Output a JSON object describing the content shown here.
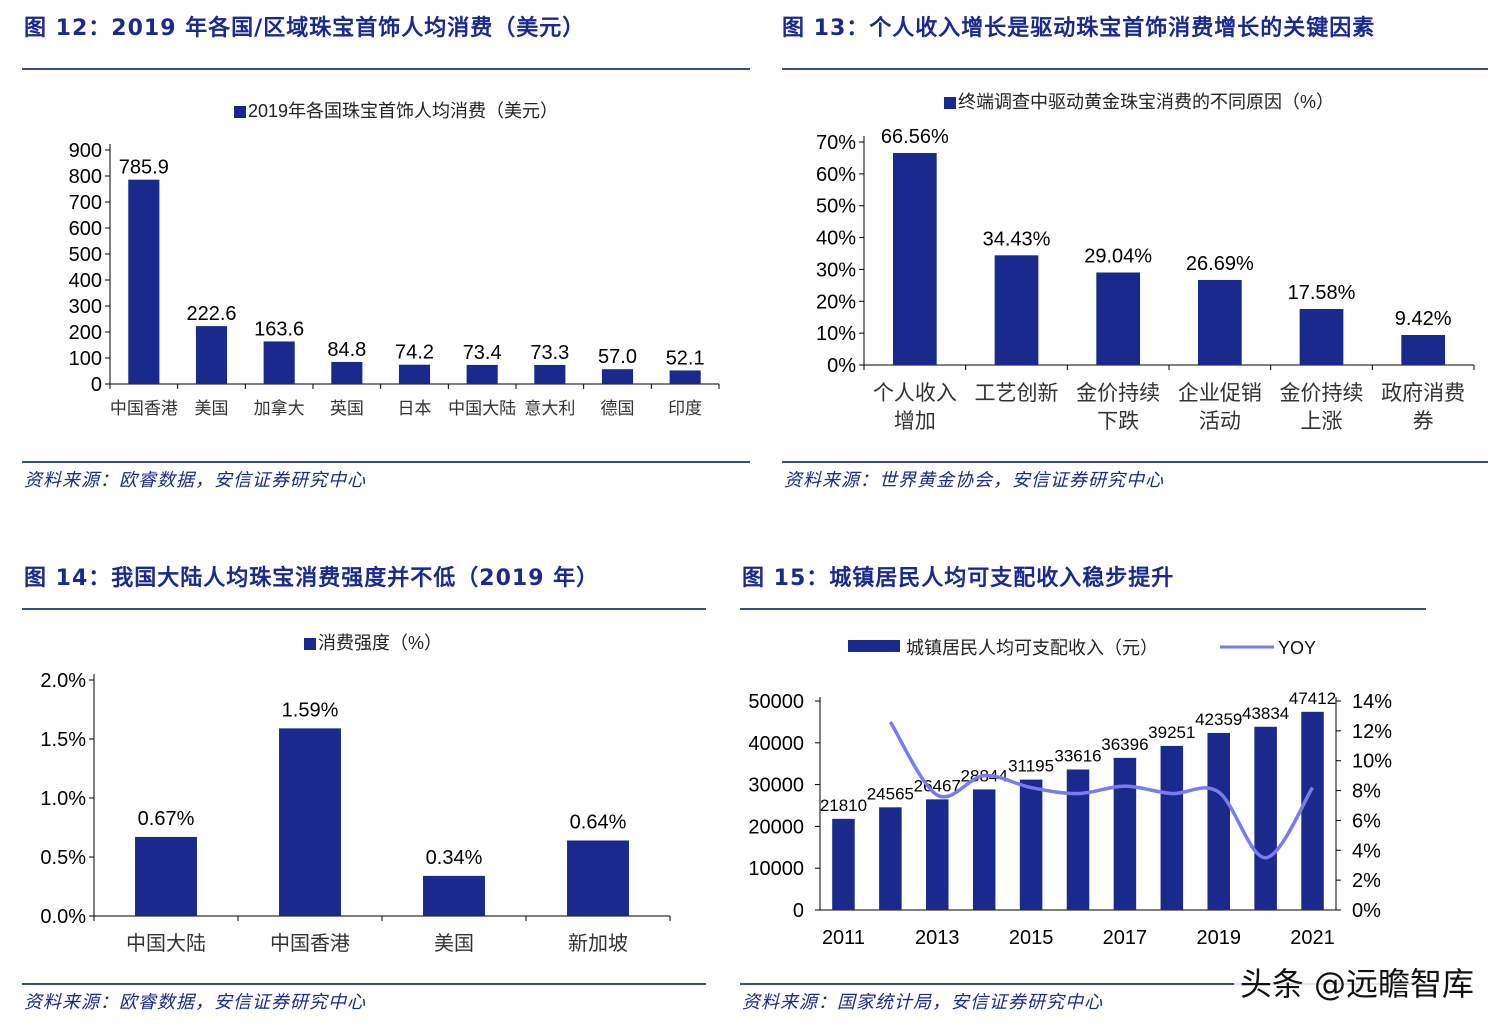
{
  "fig12": {
    "title": "图 12：2019 年各国/区域珠宝首饰人均消费（美元）",
    "source": "资料来源：欧睿数据，安信证券研究中心",
    "chart_data": {
      "type": "bar",
      "legend": "2019年各国珠宝首饰人均消费（美元）",
      "categories": [
        "中国香港",
        "美国",
        "加拿大",
        "英国",
        "日本",
        "中国大陆",
        "意大利",
        "德国",
        "印度"
      ],
      "values": [
        785.9,
        222.6,
        163.6,
        84.8,
        74.2,
        73.4,
        73.3,
        57.0,
        52.1
      ],
      "value_labels": [
        "785.9",
        "222.6",
        "163.6",
        "84.8",
        "74.2",
        "73.4",
        "73.3",
        "57.0",
        "52.1"
      ],
      "yticks": [
        "0",
        "100",
        "200",
        "300",
        "400",
        "500",
        "600",
        "700",
        "800",
        "900"
      ],
      "ylim": [
        0,
        900
      ],
      "color": "#1a2a8c"
    }
  },
  "fig13": {
    "title": "图 13：个人收入增长是驱动珠宝首饰消费增长的关键因素",
    "source": "资料来源：世界黄金协会，安信证券研究中心",
    "chart_data": {
      "type": "bar",
      "legend": "终端调查中驱动黄金珠宝消费的不同原因（%）",
      "categories": [
        "个人收入增加",
        "工艺创新",
        "金价持续下跌",
        "企业促销活动",
        "金价持续上涨",
        "政府消费券"
      ],
      "values": [
        66.56,
        34.43,
        29.04,
        26.69,
        17.58,
        9.42
      ],
      "value_labels": [
        "66.56%",
        "34.43%",
        "29.04%",
        "26.69%",
        "17.58%",
        "9.42%"
      ],
      "yticks": [
        "0%",
        "10%",
        "20%",
        "30%",
        "40%",
        "50%",
        "60%",
        "70%"
      ],
      "ylim": [
        0,
        70
      ],
      "color": "#1a2a8c"
    }
  },
  "fig14": {
    "title": "图 14：我国大陆人均珠宝消费强度并不低（2019 年）",
    "source": "资料来源：欧睿数据，安信证券研究中心",
    "chart_data": {
      "type": "bar",
      "legend": "消费强度（%）",
      "categories": [
        "中国大陆",
        "中国香港",
        "美国",
        "新加坡"
      ],
      "values": [
        0.67,
        1.59,
        0.34,
        0.64
      ],
      "value_labels": [
        "0.67%",
        "1.59%",
        "0.34%",
        "0.64%"
      ],
      "yticks": [
        "0.0%",
        "0.5%",
        "1.0%",
        "1.5%",
        "2.0%"
      ],
      "ylim": [
        0,
        2.0
      ],
      "color": "#1a2a8c"
    }
  },
  "fig15": {
    "title": "图 15：城镇居民人均可支配收入稳步提升",
    "source": "资料来源：国家统计局，安信证券研究中心",
    "chart_data": {
      "type": "bar+line",
      "series": [
        {
          "name": "城镇居民人均可支配收入（元）",
          "type": "bar",
          "axis": "left",
          "values": [
            21810,
            24565,
            26467,
            28844,
            31195,
            33616,
            36396,
            39251,
            42359,
            43834,
            47412
          ]
        },
        {
          "name": "YOY",
          "type": "line",
          "axis": "right",
          "values": [
            null,
            12.6,
            7.7,
            9.0,
            8.2,
            7.8,
            8.3,
            7.8,
            7.9,
            3.5,
            8.2
          ]
        }
      ],
      "value_labels": [
        "21810",
        "24565",
        "26467",
        "28844",
        "31195",
        "33616",
        "36396",
        "39251",
        "42359",
        "43834",
        "47412"
      ],
      "x": [
        2011,
        2012,
        2013,
        2014,
        2015,
        2016,
        2017,
        2018,
        2019,
        2020,
        2021
      ],
      "xtick_labels": [
        "2011",
        "2013",
        "2015",
        "2017",
        "2019",
        "2021"
      ],
      "yticks_left": [
        "0",
        "10000",
        "20000",
        "30000",
        "40000",
        "50000"
      ],
      "yticks_right": [
        "0%",
        "2%",
        "4%",
        "6%",
        "8%",
        "10%",
        "12%",
        "14%"
      ],
      "ylim_left": [
        0,
        50000
      ],
      "ylim_right": [
        0,
        14
      ],
      "bar_color": "#1a2a8c",
      "line_color": "#7b7bf0"
    }
  },
  "watermark": "头条 @远瞻智库"
}
